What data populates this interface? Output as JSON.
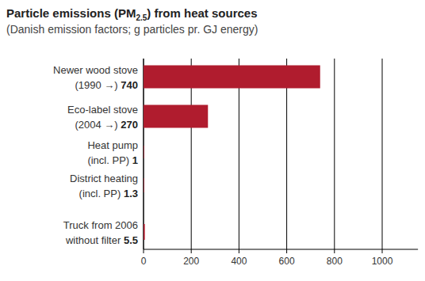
{
  "chart_data": {
    "type": "bar",
    "orientation": "horizontal",
    "title": "Particle emissions (PM2.5) from heat sources",
    "subtitle": "(Danish emission factors; g particles pr. GJ energy)",
    "categories": [
      "Newer wood stove\n(1990 →)",
      "Eco-label stove\n(2004 →)",
      "Heat pump\n(incl. PP)",
      "District heating\n(incl. PP)",
      "Truck from 2006\nwithout filter"
    ],
    "values": [
      740,
      270,
      1,
      1.3,
      5.5
    ],
    "color": "#b01c2e",
    "xlim": [
      0,
      1150
    ],
    "xticks": [
      0,
      200,
      400,
      600,
      800,
      1000
    ],
    "grid": true,
    "data_labels": true
  }
}
